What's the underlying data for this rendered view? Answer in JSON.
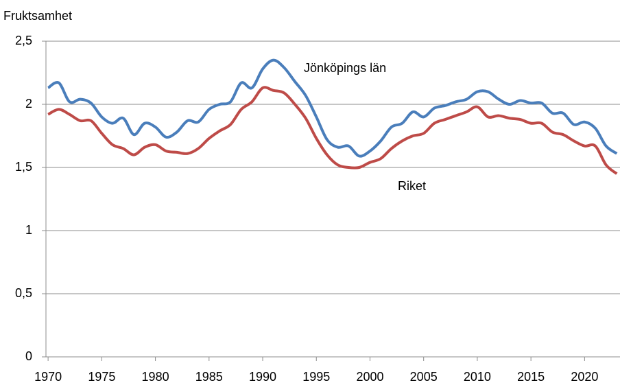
{
  "chart_data": {
    "type": "line",
    "ylabel": "Fruktsamhet",
    "x": [
      1970,
      1971,
      1972,
      1973,
      1974,
      1975,
      1976,
      1977,
      1978,
      1979,
      1980,
      1981,
      1982,
      1983,
      1984,
      1985,
      1986,
      1987,
      1988,
      1989,
      1990,
      1991,
      1992,
      1993,
      1994,
      1995,
      1996,
      1997,
      1998,
      1999,
      2000,
      2001,
      2002,
      2003,
      2004,
      2005,
      2006,
      2007,
      2008,
      2009,
      2010,
      2011,
      2012,
      2013,
      2014,
      2015,
      2016,
      2017,
      2018,
      2019,
      2020,
      2021,
      2022,
      2023
    ],
    "series": [
      {
        "name": "Jönköpings län",
        "color": "#4a7ebb",
        "values": [
          2.13,
          2.17,
          2.02,
          2.04,
          2.01,
          1.9,
          1.85,
          1.89,
          1.76,
          1.85,
          1.82,
          1.74,
          1.78,
          1.87,
          1.86,
          1.96,
          2.0,
          2.02,
          2.17,
          2.13,
          2.28,
          2.35,
          2.29,
          2.18,
          2.07,
          1.9,
          1.72,
          1.66,
          1.67,
          1.59,
          1.63,
          1.71,
          1.82,
          1.85,
          1.94,
          1.9,
          1.97,
          1.99,
          2.02,
          2.04,
          2.1,
          2.1,
          2.04,
          2.0,
          2.03,
          2.01,
          2.01,
          1.93,
          1.93,
          1.84,
          1.86,
          1.81,
          1.67,
          1.61
        ]
      },
      {
        "name": "Riket",
        "color": "#be4b48",
        "values": [
          1.92,
          1.96,
          1.92,
          1.87,
          1.87,
          1.77,
          1.68,
          1.65,
          1.6,
          1.66,
          1.68,
          1.63,
          1.62,
          1.61,
          1.65,
          1.73,
          1.79,
          1.84,
          1.96,
          2.02,
          2.13,
          2.11,
          2.09,
          2.0,
          1.89,
          1.73,
          1.6,
          1.52,
          1.5,
          1.5,
          1.54,
          1.57,
          1.65,
          1.71,
          1.75,
          1.77,
          1.85,
          1.88,
          1.91,
          1.94,
          1.98,
          1.9,
          1.91,
          1.89,
          1.88,
          1.85,
          1.85,
          1.78,
          1.76,
          1.71,
          1.67,
          1.67,
          1.52,
          1.45
        ]
      }
    ],
    "xlim": [
      1969.8,
      2023.3
    ],
    "xticks": [
      1970,
      1975,
      1980,
      1985,
      1990,
      1995,
      2000,
      2005,
      2010,
      2015,
      2020
    ],
    "ylim": [
      0,
      2.5
    ],
    "yticks": [
      0,
      {
        "value": 0.5,
        "label": "0,5"
      },
      1,
      {
        "value": 1.5,
        "label": "1,5"
      },
      2,
      {
        "value": 2.5,
        "label": "2,5"
      }
    ],
    "grid": true
  }
}
